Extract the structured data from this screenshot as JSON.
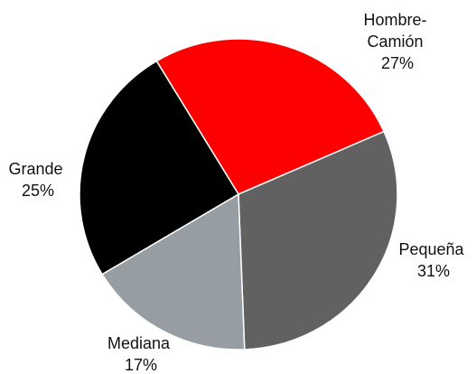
{
  "chart_data": {
    "type": "pie",
    "title": "",
    "slices": [
      {
        "label": "Hombre-Camión",
        "label_lines": [
          "Hombre-",
          "Camión"
        ],
        "value": 27,
        "percent_text": "27%",
        "color": "#ff0000"
      },
      {
        "label": "Pequeña",
        "label_lines": [
          "Pequeña"
        ],
        "value": 31,
        "percent_text": "31%",
        "color": "#616161"
      },
      {
        "label": "Mediana",
        "label_lines": [
          "Mediana"
        ],
        "value": 17,
        "percent_text": "17%",
        "color": "#969da3"
      },
      {
        "label": "Grande",
        "label_lines": [
          "Grande"
        ],
        "value": 25,
        "percent_text": "25%",
        "color": "#000000"
      }
    ],
    "legend": "none",
    "slice_border_color": "#ffffff"
  }
}
